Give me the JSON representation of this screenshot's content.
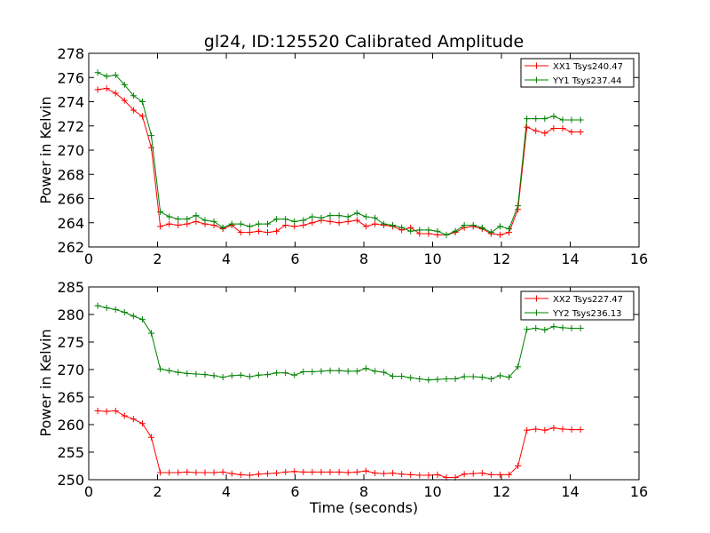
{
  "chart_data": [
    {
      "type": "line",
      "title": "gl24, ID:125520 Calibrated Amplitude",
      "xlabel": "",
      "ylabel": "Power in Kelvin",
      "xlim": [
        0,
        16
      ],
      "ylim": [
        262,
        278
      ],
      "xticks": [
        0,
        2,
        4,
        6,
        8,
        10,
        12,
        14,
        16
      ],
      "yticks": [
        262,
        264,
        266,
        268,
        270,
        272,
        274,
        276,
        278
      ],
      "grid": false,
      "legend_position": "top-right",
      "x": [
        0.26,
        0.52,
        0.78,
        1.04,
        1.3,
        1.56,
        1.82,
        2.08,
        2.34,
        2.6,
        2.86,
        3.12,
        3.38,
        3.64,
        3.9,
        4.16,
        4.42,
        4.68,
        4.94,
        5.2,
        5.46,
        5.72,
        5.98,
        6.24,
        6.5,
        6.76,
        7.02,
        7.28,
        7.54,
        7.8,
        8.06,
        8.32,
        8.58,
        8.84,
        9.1,
        9.36,
        9.62,
        9.88,
        10.14,
        10.4,
        10.66,
        10.92,
        11.18,
        11.44,
        11.7,
        11.96,
        12.22,
        12.48,
        12.74,
        13.0,
        13.26,
        13.52,
        13.78,
        14.04,
        14.3
      ],
      "series": [
        {
          "name": "XX1 Tsys240.47",
          "color": "#ff0000",
          "values": [
            275.0,
            275.1,
            274.7,
            274.1,
            273.3,
            272.8,
            270.2,
            263.7,
            263.9,
            263.8,
            263.9,
            264.1,
            263.9,
            263.8,
            263.5,
            263.8,
            263.2,
            263.2,
            263.3,
            263.2,
            263.3,
            263.8,
            263.7,
            263.8,
            264.0,
            264.2,
            264.1,
            264.0,
            264.1,
            264.2,
            263.7,
            263.9,
            263.8,
            263.7,
            263.4,
            263.6,
            263.1,
            263.1,
            263.0,
            263.0,
            263.2,
            263.6,
            263.7,
            263.5,
            263.1,
            263.0,
            263.2,
            265.1,
            271.9,
            271.6,
            271.4,
            271.8,
            271.8,
            271.5,
            271.5
          ]
        },
        {
          "name": "YY1 Tsys237.44",
          "color": "#008000",
          "values": [
            276.4,
            276.1,
            276.2,
            275.4,
            274.5,
            274.0,
            271.2,
            264.9,
            264.5,
            264.3,
            264.3,
            264.6,
            264.2,
            264.1,
            263.6,
            263.9,
            263.9,
            263.7,
            263.9,
            263.9,
            264.3,
            264.3,
            264.1,
            264.2,
            264.5,
            264.4,
            264.6,
            264.6,
            264.5,
            264.8,
            264.5,
            264.4,
            263.9,
            263.8,
            263.6,
            263.3,
            263.4,
            263.4,
            263.3,
            263.0,
            263.3,
            263.8,
            263.8,
            263.6,
            263.2,
            263.7,
            263.5,
            265.4,
            272.6,
            272.6,
            272.6,
            272.8,
            272.5,
            272.5,
            272.5
          ]
        }
      ]
    },
    {
      "type": "line",
      "title": "",
      "xlabel": "Time (seconds)",
      "ylabel": "Power in Kelvin",
      "xlim": [
        0,
        16
      ],
      "ylim": [
        250,
        285
      ],
      "xticks": [
        0,
        2,
        4,
        6,
        8,
        10,
        12,
        14,
        16
      ],
      "yticks": [
        250,
        255,
        260,
        265,
        270,
        275,
        280,
        285
      ],
      "grid": false,
      "legend_position": "top-right",
      "x": [
        0.26,
        0.52,
        0.78,
        1.04,
        1.3,
        1.56,
        1.82,
        2.08,
        2.34,
        2.6,
        2.86,
        3.12,
        3.38,
        3.64,
        3.9,
        4.16,
        4.42,
        4.68,
        4.94,
        5.2,
        5.46,
        5.72,
        5.98,
        6.24,
        6.5,
        6.76,
        7.02,
        7.28,
        7.54,
        7.8,
        8.06,
        8.32,
        8.58,
        8.84,
        9.1,
        9.36,
        9.62,
        9.88,
        10.14,
        10.4,
        10.66,
        10.92,
        11.18,
        11.44,
        11.7,
        11.96,
        12.22,
        12.48,
        12.74,
        13.0,
        13.26,
        13.52,
        13.78,
        14.04,
        14.3
      ],
      "series": [
        {
          "name": "XX2 Tsys227.47",
          "color": "#ff0000",
          "values": [
            262.5,
            262.4,
            262.5,
            261.6,
            261.0,
            260.2,
            257.7,
            251.3,
            251.3,
            251.3,
            251.4,
            251.3,
            251.3,
            251.3,
            251.4,
            251.1,
            250.9,
            250.8,
            251.0,
            251.1,
            251.2,
            251.4,
            251.5,
            251.4,
            251.4,
            251.4,
            251.4,
            251.4,
            251.3,
            251.4,
            251.6,
            251.2,
            251.1,
            251.2,
            251.0,
            250.9,
            250.8,
            250.8,
            250.9,
            250.4,
            250.4,
            251.0,
            251.1,
            251.2,
            250.9,
            250.9,
            250.9,
            252.5,
            259.0,
            259.2,
            259.0,
            259.4,
            259.2,
            259.1,
            259.1
          ]
        },
        {
          "name": "YY2 Tsys236.13",
          "color": "#008000",
          "values": [
            281.6,
            281.2,
            280.9,
            280.4,
            279.7,
            279.1,
            276.6,
            270.1,
            269.8,
            269.5,
            269.3,
            269.2,
            269.1,
            268.9,
            268.6,
            268.9,
            269.0,
            268.7,
            269.0,
            269.1,
            269.4,
            269.4,
            269.0,
            269.6,
            269.6,
            269.7,
            269.8,
            269.8,
            269.7,
            269.7,
            270.2,
            269.7,
            269.5,
            268.8,
            268.8,
            268.5,
            268.3,
            268.1,
            268.2,
            268.3,
            268.3,
            268.7,
            268.7,
            268.6,
            268.3,
            268.9,
            268.6,
            270.5,
            277.3,
            277.5,
            277.2,
            277.8,
            277.6,
            277.5,
            277.5
          ]
        }
      ]
    }
  ]
}
